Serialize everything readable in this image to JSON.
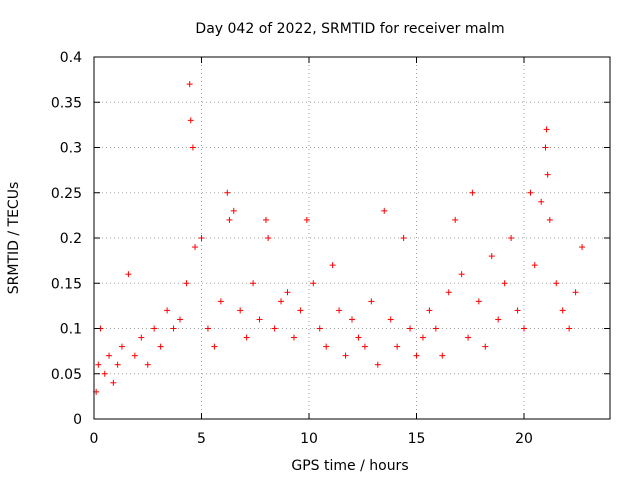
{
  "chart_data": {
    "type": "scatter",
    "title": "Day 042 of 2022, SRMTID for receiver malm",
    "xlabel": "GPS time / hours",
    "ylabel": "SRMTID / TECUs",
    "xlim": [
      0,
      24
    ],
    "ylim": [
      0,
      0.4
    ],
    "x_ticks": [
      0,
      5,
      10,
      15,
      20
    ],
    "x_tick_labels": [
      "0",
      "5",
      "10",
      "15",
      "20"
    ],
    "y_ticks": [
      0,
      0.05,
      0.1,
      0.15,
      0.2,
      0.25,
      0.3,
      0.35,
      0.4
    ],
    "y_tick_labels": [
      "0",
      "0.05",
      "0.1",
      "0.15",
      "0.2",
      "0.25",
      "0.3",
      "0.35",
      "0.4"
    ],
    "grid": true,
    "marker": "plus",
    "color": "#ff0000",
    "series": [
      {
        "name": "SRMTID",
        "x": [
          0.1,
          0.2,
          0.3,
          0.5,
          0.7,
          0.9,
          1.1,
          1.3,
          1.6,
          1.9,
          2.2,
          2.5,
          2.8,
          3.1,
          3.4,
          3.7,
          4.0,
          4.3,
          4.45,
          4.5,
          4.6,
          4.7,
          5.0,
          5.3,
          5.6,
          5.9,
          6.2,
          6.3,
          6.5,
          6.8,
          7.1,
          7.4,
          7.7,
          8.0,
          8.1,
          8.4,
          8.7,
          9.0,
          9.3,
          9.6,
          9.9,
          10.2,
          10.5,
          10.8,
          11.1,
          11.4,
          11.7,
          12.0,
          12.3,
          12.6,
          12.9,
          13.2,
          13.5,
          13.8,
          14.1,
          14.4,
          14.7,
          15.0,
          15.3,
          15.6,
          15.9,
          16.2,
          16.5,
          16.8,
          17.1,
          17.4,
          17.6,
          17.9,
          18.2,
          18.5,
          18.8,
          19.1,
          19.4,
          19.7,
          20.0,
          20.3,
          20.5,
          20.8,
          21.0,
          21.05,
          21.1,
          21.2,
          21.5,
          21.8,
          22.1,
          22.4,
          22.7
        ],
        "y": [
          0.03,
          0.06,
          0.1,
          0.05,
          0.07,
          0.04,
          0.06,
          0.08,
          0.16,
          0.07,
          0.09,
          0.06,
          0.1,
          0.08,
          0.12,
          0.1,
          0.11,
          0.15,
          0.37,
          0.33,
          0.3,
          0.19,
          0.2,
          0.1,
          0.08,
          0.13,
          0.25,
          0.22,
          0.23,
          0.12,
          0.09,
          0.15,
          0.11,
          0.22,
          0.2,
          0.1,
          0.13,
          0.14,
          0.09,
          0.12,
          0.22,
          0.15,
          0.1,
          0.08,
          0.17,
          0.12,
          0.07,
          0.11,
          0.09,
          0.08,
          0.13,
          0.06,
          0.23,
          0.11,
          0.08,
          0.2,
          0.1,
          0.07,
          0.09,
          0.12,
          0.1,
          0.07,
          0.14,
          0.22,
          0.16,
          0.09,
          0.25,
          0.13,
          0.08,
          0.18,
          0.11,
          0.15,
          0.2,
          0.12,
          0.1,
          0.25,
          0.17,
          0.24,
          0.3,
          0.32,
          0.27,
          0.22,
          0.15,
          0.12,
          0.1,
          0.14,
          0.19
        ]
      }
    ]
  }
}
